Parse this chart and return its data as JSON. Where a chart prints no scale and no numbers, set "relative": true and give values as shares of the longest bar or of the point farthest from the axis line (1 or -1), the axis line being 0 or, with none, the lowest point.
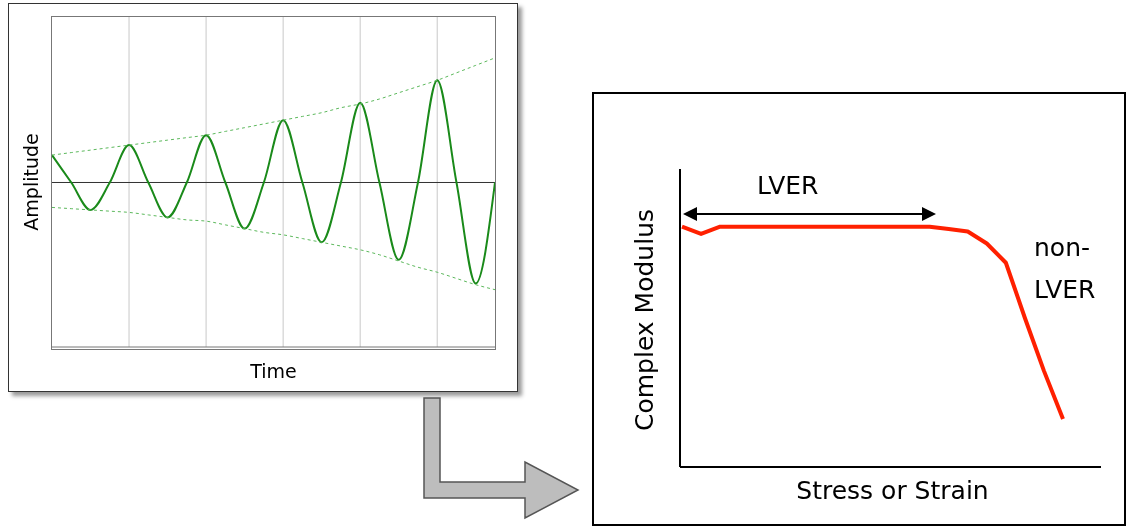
{
  "chart_data": [
    {
      "type": "line",
      "xlabel": "Time",
      "ylabel": "Amplitude",
      "relative": true,
      "grid": "x",
      "categories": [
        null,
        null,
        null,
        null,
        null,
        null,
        null,
        null,
        null,
        null,
        null,
        null,
        null,
        null,
        null,
        null,
        null,
        null,
        null,
        null,
        null,
        null,
        null,
        null
      ],
      "series": [
        {
          "color": "#1a8a1a",
          "line_style": "solid",
          "values": [
            0.22,
            0,
            -0.22,
            0,
            0.3,
            0,
            -0.28,
            0,
            0.38,
            0,
            -0.37,
            0,
            0.5,
            0,
            -0.48,
            0,
            0.64,
            0,
            -0.62,
            0,
            0.82,
            0,
            -0.81,
            0
          ]
        },
        {
          "color": "#5cb85c",
          "line_style": "dashed",
          "values": [
            0.22,
            0.24,
            0.26,
            0.28,
            0.3,
            0.32,
            0.34,
            0.36,
            0.38,
            0.41,
            0.44,
            0.47,
            0.5,
            0.53,
            0.56,
            0.6,
            0.63,
            0.67,
            0.72,
            0.77,
            0.82,
            0.88,
            0.94,
            1.0
          ]
        },
        {
          "color": "#5cb85c",
          "line_style": "dashed",
          "values": [
            -0.2,
            -0.21,
            -0.22,
            -0.23,
            -0.24,
            -0.26,
            -0.28,
            -0.3,
            -0.31,
            -0.34,
            -0.37,
            -0.4,
            -0.42,
            -0.45,
            -0.48,
            -0.51,
            -0.54,
            -0.58,
            -0.63,
            -0.68,
            -0.72,
            -0.77,
            -0.82,
            -0.86
          ]
        }
      ]
    },
    {
      "type": "line",
      "xlabel": "Stress or Strain",
      "ylabel": "Complex Modulus",
      "relative": true,
      "annotations": [
        "LVER",
        "non-LVER"
      ],
      "categories": [
        null,
        null,
        null,
        null,
        null,
        null,
        null,
        null,
        null,
        null,
        null,
        null,
        null,
        null,
        null,
        null,
        null,
        null,
        null,
        null,
        null
      ],
      "series": [
        {
          "color": "#ff2000",
          "line_style": "solid",
          "values": [
            1,
            0.97,
            1,
            1,
            1,
            1,
            1,
            1,
            1,
            1,
            1,
            1,
            1,
            1,
            0.99,
            0.98,
            0.93,
            0.85,
            0.62,
            0.4,
            0.2
          ]
        }
      ]
    }
  ]
}
